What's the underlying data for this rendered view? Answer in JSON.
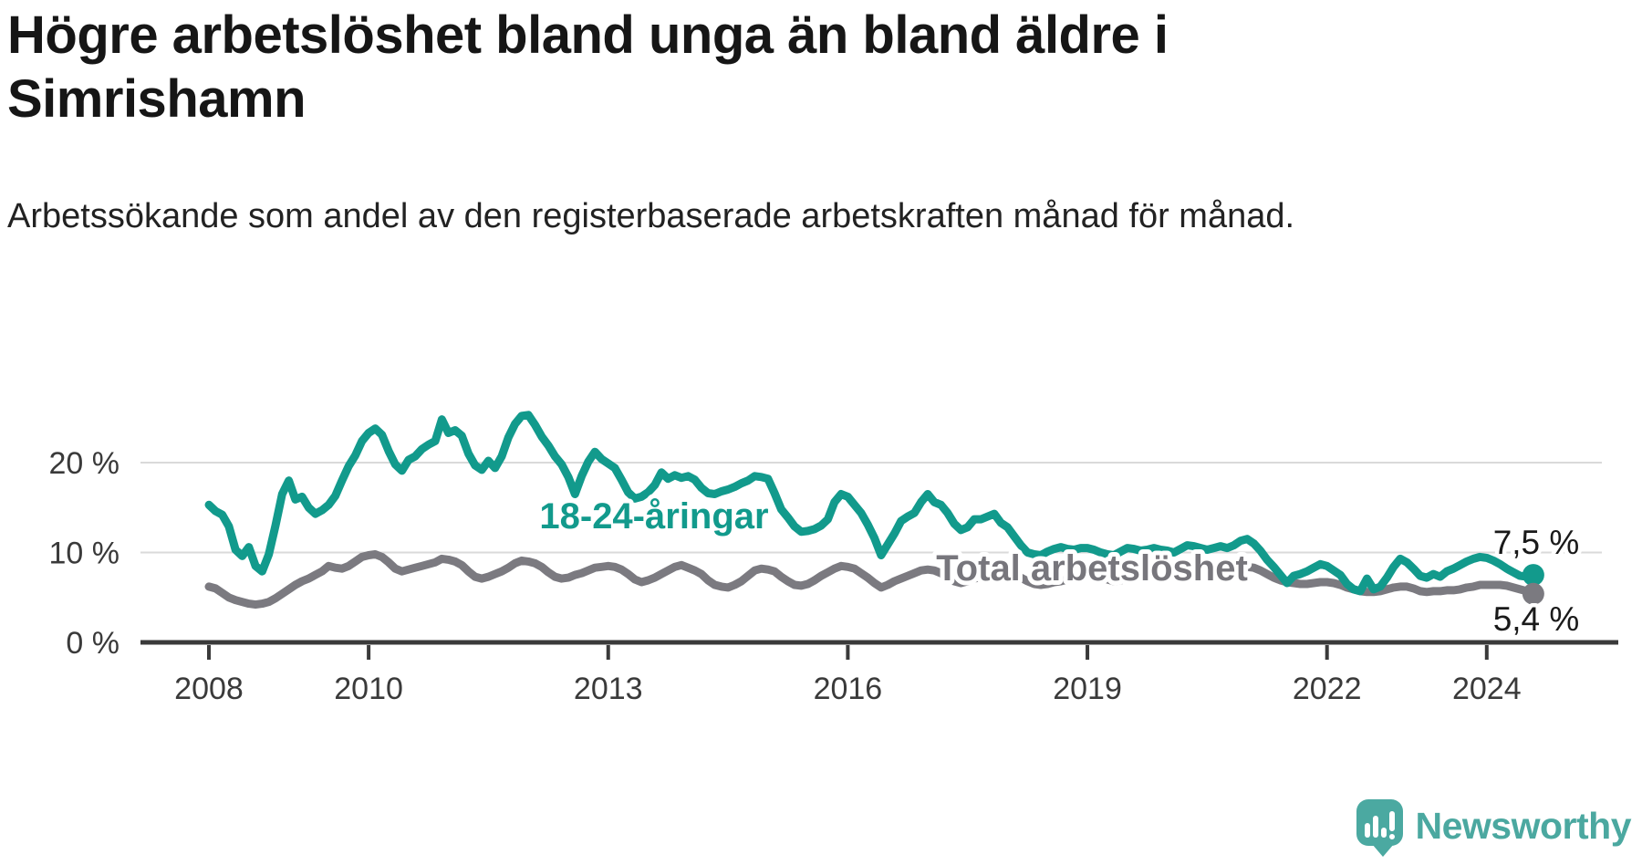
{
  "title": "Högre arbetslöshet bland unga än bland äldre i Simrishamn",
  "subtitle": "Arbetssökande som andel av den registerbaserade arbetskraften månad för månad.",
  "branding": {
    "logo_text": "Newsworthy",
    "logo_color": "#4ba9a1"
  },
  "colors": {
    "young_series": "#129a8c",
    "total_series": "#7b7a80",
    "axis": "#3a3a3a",
    "gridline": "#dadada",
    "text": "#1a1a1a"
  },
  "chart_data": {
    "type": "line",
    "title": "Högre arbetslöshet bland unga än bland äldre i Simrishamn",
    "subtitle": "Arbetssökande som andel av den registerbaserade arbetskraften månad för månad.",
    "x_start": "2008-01",
    "x_end": "2024-08",
    "x_ticks": [
      {
        "year": 2008,
        "label": "2008"
      },
      {
        "year": 2010,
        "label": "2010"
      },
      {
        "year": 2013,
        "label": "2013"
      },
      {
        "year": 2016,
        "label": "2016"
      },
      {
        "year": 2019,
        "label": "2019"
      },
      {
        "year": 2022,
        "label": "2022"
      },
      {
        "year": 2024,
        "label": "2024"
      }
    ],
    "y_ticks": [
      {
        "value": 0,
        "label": "0 %"
      },
      {
        "value": 10,
        "label": "10 %"
      },
      {
        "value": 20,
        "label": "20 %"
      }
    ],
    "ylim": [
      0,
      27.5
    ],
    "grid": "horizontal",
    "legend_position": "inline-labels",
    "unit": "%",
    "series": [
      {
        "name": "18-24-åringar",
        "color": "#129a8c",
        "end_label": "7,5 %",
        "end_value": 7.5,
        "values": [
          15.3,
          14.6,
          14.2,
          12.9,
          10.3,
          9.6,
          10.6,
          8.5,
          7.9,
          9.8,
          13.0,
          16.5,
          18.0,
          15.9,
          16.2,
          15.0,
          14.3,
          14.7,
          15.3,
          16.3,
          18.0,
          19.6,
          20.8,
          22.4,
          23.3,
          23.8,
          23.1,
          21.3,
          19.8,
          19.1,
          20.3,
          20.7,
          21.5,
          22.0,
          22.4,
          24.8,
          23.3,
          23.6,
          23.0,
          21.0,
          19.7,
          19.2,
          20.2,
          19.4,
          20.7,
          22.8,
          24.3,
          25.2,
          25.3,
          24.2,
          22.9,
          21.9,
          20.7,
          19.8,
          18.4,
          16.5,
          18.5,
          20.1,
          21.2,
          20.4,
          19.9,
          19.4,
          18.1,
          16.7,
          16.0,
          16.2,
          16.7,
          17.5,
          18.9,
          18.2,
          18.6,
          18.3,
          18.5,
          18.1,
          17.2,
          16.6,
          16.5,
          16.8,
          17.0,
          17.3,
          17.7,
          18.0,
          18.5,
          18.4,
          18.2,
          16.6,
          14.8,
          13.9,
          12.9,
          12.3,
          12.4,
          12.6,
          13.0,
          13.7,
          15.6,
          16.5,
          16.2,
          15.3,
          14.4,
          13.1,
          11.6,
          9.7,
          10.9,
          12.1,
          13.5,
          14.0,
          14.4,
          15.6,
          16.5,
          15.6,
          15.3,
          14.4,
          13.2,
          12.5,
          12.8,
          13.7,
          13.7,
          14.0,
          14.3,
          13.3,
          12.8,
          11.8,
          10.8,
          10.0,
          9.8,
          9.7,
          10.1,
          10.4,
          10.6,
          10.4,
          10.3,
          10.5,
          10.5,
          10.3,
          10.0,
          9.8,
          9.7,
          10.1,
          10.5,
          10.4,
          10.2,
          10.3,
          10.5,
          10.3,
          10.2,
          10.0,
          10.4,
          10.8,
          10.7,
          10.5,
          10.3,
          10.5,
          10.7,
          10.5,
          10.8,
          11.3,
          11.5,
          11.0,
          10.2,
          9.2,
          8.4,
          7.5,
          6.6,
          7.4,
          7.6,
          7.9,
          8.3,
          8.7,
          8.5,
          8.0,
          7.5,
          6.5,
          5.9,
          5.7,
          7.1,
          5.9,
          6.2,
          7.2,
          8.4,
          9.3,
          8.9,
          8.2,
          7.4,
          7.2,
          7.6,
          7.3,
          7.9,
          8.2,
          8.6,
          9.0,
          9.3,
          9.5,
          9.4,
          9.1,
          8.7,
          8.2,
          7.8,
          7.4,
          7.3,
          7.5
        ]
      },
      {
        "name": "Total arbetslöshet",
        "color": "#7b7a80",
        "end_label": "5,4 %",
        "end_value": 5.4,
        "values": [
          6.2,
          6.0,
          5.5,
          5.0,
          4.7,
          4.5,
          4.3,
          4.2,
          4.3,
          4.5,
          4.9,
          5.4,
          5.9,
          6.4,
          6.8,
          7.1,
          7.5,
          7.9,
          8.5,
          8.3,
          8.2,
          8.5,
          9.0,
          9.5,
          9.7,
          9.8,
          9.5,
          8.9,
          8.2,
          7.9,
          8.1,
          8.3,
          8.5,
          8.7,
          8.9,
          9.3,
          9.2,
          9.0,
          8.6,
          7.9,
          7.3,
          7.1,
          7.3,
          7.6,
          7.9,
          8.3,
          8.8,
          9.1,
          9.0,
          8.8,
          8.4,
          7.8,
          7.3,
          7.1,
          7.2,
          7.5,
          7.7,
          8.0,
          8.3,
          8.4,
          8.5,
          8.4,
          8.1,
          7.6,
          7.0,
          6.7,
          6.9,
          7.2,
          7.6,
          8.0,
          8.4,
          8.6,
          8.3,
          8.0,
          7.6,
          6.9,
          6.4,
          6.2,
          6.1,
          6.4,
          6.8,
          7.4,
          8.0,
          8.2,
          8.1,
          7.9,
          7.3,
          6.8,
          6.4,
          6.3,
          6.5,
          6.9,
          7.4,
          7.8,
          8.2,
          8.5,
          8.4,
          8.2,
          7.7,
          7.2,
          6.6,
          6.1,
          6.4,
          6.8,
          7.1,
          7.4,
          7.7,
          8.0,
          8.1,
          8.0,
          7.7,
          7.2,
          6.8,
          6.6,
          6.8,
          7.1,
          7.3,
          7.5,
          7.7,
          7.9,
          7.8,
          7.6,
          7.2,
          6.8,
          6.5,
          6.4,
          6.5,
          6.7,
          6.8,
          7.0,
          7.2,
          7.4,
          7.5,
          7.4,
          7.2,
          7.0,
          6.8,
          6.9,
          7.1,
          7.2,
          7.2,
          7.3,
          7.4,
          7.5,
          7.5,
          7.5,
          7.8,
          8.3,
          8.6,
          8.7,
          8.6,
          8.5,
          8.4,
          8.3,
          8.3,
          8.4,
          8.4,
          8.3,
          8.0,
          7.6,
          7.2,
          6.9,
          6.7,
          6.6,
          6.5,
          6.5,
          6.6,
          6.7,
          6.7,
          6.6,
          6.4,
          6.1,
          5.9,
          5.7,
          5.6,
          5.6,
          5.7,
          5.9,
          6.1,
          6.2,
          6.2,
          6.0,
          5.7,
          5.6,
          5.7,
          5.7,
          5.8,
          5.8,
          5.9,
          6.1,
          6.2,
          6.4,
          6.4,
          6.4,
          6.4,
          6.3,
          6.1,
          5.9,
          5.7,
          5.4
        ]
      }
    ]
  }
}
